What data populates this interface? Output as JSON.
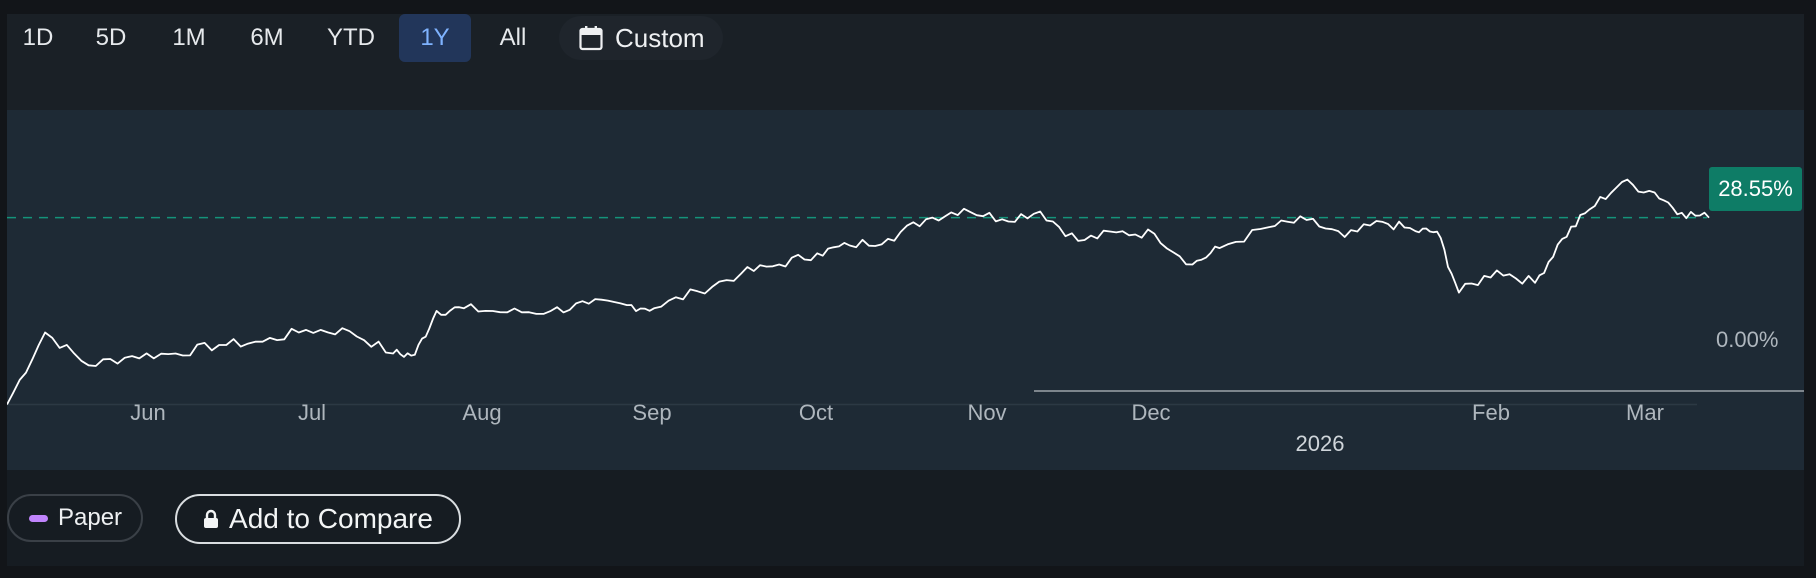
{
  "range_buttons": [
    {
      "label": "1D"
    },
    {
      "label": "5D"
    },
    {
      "label": "1M"
    },
    {
      "label": "6M"
    },
    {
      "label": "YTD"
    },
    {
      "label": "1Y"
    },
    {
      "label": "All"
    }
  ],
  "active_range": "1Y",
  "custom_label": "Custom",
  "paper_label": "Paper",
  "compare_label": "Add to Compare",
  "colors": {
    "active_bg": "#22365a",
    "active_text": "#7fb3ff",
    "badge": "#0e7c66",
    "line": "#ffffff",
    "paper_swatch": "#c084fc"
  },
  "icons": {
    "custom": "calendar-icon",
    "compare": "lock-icon"
  },
  "chart_data": {
    "type": "line",
    "current_value_label": "28.55%",
    "current_value": 28.55,
    "y_tick_labels": [
      "0.00%"
    ],
    "x_tick_labels": [
      "Jun",
      "Jul",
      "Aug",
      "Sep",
      "Oct",
      "Nov",
      "Dec",
      "Feb",
      "Mar"
    ],
    "year_label": "2026",
    "ylim": [
      -10,
      45
    ],
    "x_range": [
      "2025-05-14",
      "2026-03-23"
    ],
    "x": [
      "2025-05-14",
      "2025-05-21",
      "2025-05-29",
      "2025-06-06",
      "2025-06-14",
      "2025-06-22",
      "2025-06-30",
      "2025-07-08",
      "2025-07-16",
      "2025-07-24",
      "2025-07-28",
      "2025-08-01",
      "2025-08-06",
      "2025-08-14",
      "2025-08-22",
      "2025-08-29",
      "2025-09-05",
      "2025-09-10",
      "2025-09-18",
      "2025-09-26",
      "2025-10-03",
      "2025-10-10",
      "2025-10-16",
      "2025-10-23",
      "2025-10-30",
      "2025-11-06",
      "2025-11-13",
      "2025-11-20",
      "2025-11-27",
      "2025-12-04",
      "2025-12-11",
      "2025-12-18",
      "2025-12-23",
      "2026-01-01",
      "2026-01-08",
      "2026-01-15",
      "2026-01-22",
      "2026-01-28",
      "2026-02-01",
      "2026-02-05",
      "2026-02-12",
      "2026-02-19",
      "2026-02-24",
      "2026-03-01",
      "2026-03-07",
      "2026-03-13",
      "2026-03-18",
      "2026-03-23"
    ],
    "y": [
      0.0,
      11.0,
      6.0,
      7.4,
      7.8,
      9.1,
      9.6,
      11.4,
      11.2,
      7.8,
      7.6,
      14.3,
      14.7,
      14.1,
      14.3,
      15.4,
      15.2,
      14.7,
      17.3,
      20.0,
      21.4,
      23.1,
      24.3,
      25.3,
      28.3,
      29.9,
      28.3,
      29.5,
      25.0,
      26.3,
      26.1,
      21.4,
      23.9,
      27.1,
      28.2,
      25.6,
      27.9,
      26.5,
      26.4,
      17.1,
      20.5,
      18.6,
      25.3,
      29.8,
      34.0,
      32.4,
      29.3,
      28.55
    ]
  }
}
